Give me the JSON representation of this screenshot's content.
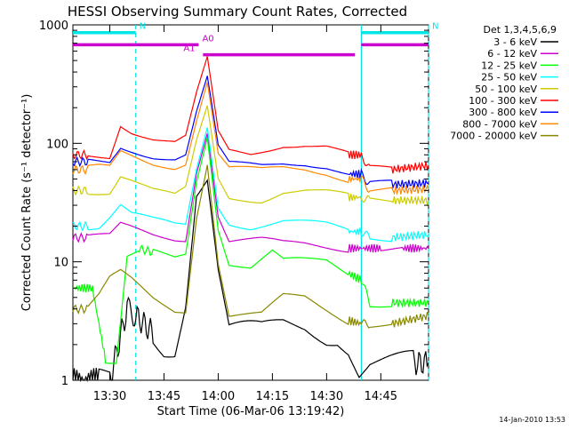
{
  "chart_data": {
    "type": "line",
    "title": "HESSI Observing Summary Count Rates, Corrected",
    "xlabel": "Start Time (06-Mar-06 13:19:42)",
    "ylabel": "Corrected Count Rate (s⁻¹ detector⁻¹)",
    "footer": "14-Jan-2010 13:53",
    "y_scale": "log",
    "ylim": [
      1,
      1000
    ],
    "xlim_minutes": [
      13.33,
      13.97
    ],
    "x_ticks": [
      {
        "label": "13:30",
        "t": 13.5
      },
      {
        "label": "13:45",
        "t": 13.75
      },
      {
        "label": "14:00",
        "t": 14.0
      },
      {
        "label": "14:15",
        "t": 14.25
      },
      {
        "label": "14:30",
        "t": 14.5
      },
      {
        "label": "14:45",
        "t": 14.75
      }
    ],
    "y_ticks": [
      {
        "label": "1",
        "v": 1
      },
      {
        "label": "10",
        "v": 10
      },
      {
        "label": "100",
        "v": 100
      },
      {
        "label": "1000",
        "v": 1000
      }
    ],
    "legend_title": "Det 1,3,4,5,6,9",
    "series": [
      {
        "name": "3 - 6 keV",
        "color": "#000000",
        "t": [
          13.33,
          13.45,
          13.5,
          13.58,
          13.62,
          13.7,
          13.75,
          13.8,
          13.85,
          13.9,
          13.95,
          14.0,
          14.05,
          14.1,
          14.2,
          14.3,
          14.4,
          14.5,
          14.55,
          14.6,
          14.65,
          14.7,
          14.75,
          14.8,
          14.9,
          14.97
        ],
        "v": [
          1,
          1,
          1,
          4,
          3.5,
          2.5,
          2,
          2,
          5,
          40,
          50,
          8,
          2.5,
          2.5,
          2.5,
          3,
          3,
          2.5,
          2.5,
          2,
          1.2,
          1.4,
          1.4,
          1.4,
          1.4,
          1.4
        ]
      },
      {
        "name": "6 - 12 keV",
        "color": "#cc00cc",
        "t": [
          13.33,
          13.4,
          13.5,
          13.55,
          13.6,
          13.7,
          13.8,
          13.85,
          13.9,
          13.95,
          14.0,
          14.05,
          14.1,
          14.2,
          14.3,
          14.4,
          14.5,
          14.6,
          14.63,
          14.66,
          14.75,
          14.85,
          14.97
        ],
        "v": [
          16,
          16,
          16,
          20,
          19,
          17,
          16,
          16,
          60,
          130,
          25,
          15,
          15,
          15,
          14,
          14,
          13.5,
          13,
          13,
          13,
          13,
          13,
          13
        ]
      },
      {
        "name": "12 - 25 keV",
        "color": "#00ff00",
        "t": [
          13.33,
          13.42,
          13.48,
          13.53,
          13.58,
          13.63,
          13.7,
          13.8,
          13.85,
          13.9,
          13.95,
          14.0,
          14.05,
          14.15,
          14.25,
          14.3,
          14.4,
          14.5,
          14.6,
          14.66,
          14.7,
          14.8,
          14.97
        ],
        "v": [
          6,
          6,
          1.5,
          1.5,
          12,
          13,
          12,
          11,
          12,
          50,
          120,
          20,
          10,
          9,
          12,
          10,
          10,
          10,
          8,
          7,
          4.5,
          4.5,
          4.5
        ]
      },
      {
        "name": "25 - 50 keV",
        "color": "#00ffff",
        "t": [
          13.33,
          13.4,
          13.45,
          13.5,
          13.55,
          13.6,
          13.7,
          13.8,
          13.85,
          13.9,
          13.95,
          14.0,
          14.05,
          14.15,
          14.3,
          14.4,
          14.5,
          14.6,
          14.66,
          14.7,
          14.8,
          14.97
        ],
        "v": [
          20,
          20,
          20,
          24,
          30,
          25,
          22,
          20,
          20,
          60,
          140,
          30,
          22,
          20,
          22,
          21,
          20,
          18,
          18,
          16,
          16,
          17
        ]
      },
      {
        "name": "50 - 100 keV",
        "color": "#cccc00",
        "t": [
          13.33,
          13.4,
          13.45,
          13.5,
          13.55,
          13.6,
          13.7,
          13.8,
          13.85,
          13.9,
          13.95,
          14.0,
          14.05,
          14.2,
          14.3,
          14.4,
          14.5,
          14.6,
          14.66,
          14.7,
          14.8,
          14.97
        ],
        "v": [
          40,
          40,
          40,
          40,
          55,
          50,
          40,
          35,
          40,
          100,
          200,
          50,
          35,
          34,
          40,
          40,
          38,
          35,
          35,
          33,
          33,
          33
        ]
      },
      {
        "name": "100 - 300 keV",
        "color": "#ff0000",
        "t": [
          13.33,
          13.4,
          13.45,
          13.5,
          13.55,
          13.6,
          13.7,
          13.8,
          13.85,
          13.9,
          13.95,
          14.0,
          14.05,
          14.15,
          14.3,
          14.4,
          14.5,
          14.6,
          14.66,
          14.7,
          14.8,
          14.97
        ],
        "v": [
          80,
          80,
          80,
          80,
          150,
          130,
          110,
          100,
          110,
          250,
          500,
          120,
          85,
          82,
          100,
          100,
          95,
          80,
          80,
          60,
          60,
          65
        ]
      },
      {
        "name": "300 - 800 keV",
        "color": "#0000ff",
        "t": [
          13.33,
          13.4,
          13.45,
          13.5,
          13.55,
          13.6,
          13.7,
          13.8,
          13.85,
          13.9,
          13.95,
          14.0,
          14.05,
          14.2,
          14.3,
          14.4,
          14.5,
          14.6,
          14.66,
          14.7,
          14.8,
          14.97
        ],
        "v": [
          70,
          70,
          70,
          70,
          95,
          90,
          80,
          75,
          80,
          180,
          350,
          90,
          65,
          65,
          70,
          70,
          65,
          55,
          55,
          45,
          45,
          46
        ]
      },
      {
        "name": "800 - 7000 keV",
        "color": "#ff8800",
        "t": [
          13.33,
          13.4,
          13.45,
          13.5,
          13.55,
          13.6,
          13.7,
          13.8,
          13.85,
          13.9,
          13.95,
          14.0,
          14.05,
          14.2,
          14.3,
          14.4,
          14.5,
          14.6,
          14.66,
          14.7,
          14.8,
          14.97
        ],
        "v": [
          60,
          60,
          62,
          62,
          85,
          80,
          70,
          65,
          70,
          160,
          330,
          80,
          60,
          58,
          62,
          62,
          58,
          50,
          50,
          40,
          40,
          41
        ]
      },
      {
        "name": "7000 - 20000 keV",
        "color": "#888800",
        "t": [
          13.33,
          13.4,
          13.45,
          13.5,
          13.55,
          13.6,
          13.7,
          13.8,
          13.85,
          13.9,
          13.95,
          14.0,
          14.05,
          14.2,
          14.3,
          14.4,
          14.5,
          14.6,
          14.66,
          14.7,
          14.8,
          14.97
        ],
        "v": [
          4,
          4,
          5,
          7,
          8,
          7,
          5,
          4,
          4,
          25,
          70,
          10,
          3.5,
          3.5,
          5,
          5,
          4,
          3.2,
          3,
          3,
          3,
          3.5
        ]
      }
    ],
    "state_bars": [
      {
        "label": "N",
        "color": "#00e5e5",
        "t_start": 13.33,
        "t_end": 13.62,
        "y": 860,
        "vline_t": 13.62
      },
      {
        "label": "N",
        "color": "#00e5e5",
        "t_start": 14.66,
        "t_end": 14.97,
        "y": 860,
        "vline_t": 14.66
      },
      {
        "label": "A0",
        "color": "#cc00cc",
        "t_start": 13.33,
        "t_end": 13.91,
        "y": 680
      },
      {
        "label": "A1",
        "color": "#cc00cc",
        "t_start": 13.93,
        "t_end": 14.63,
        "y": 560
      },
      {
        "label": "",
        "color": "#cc00cc",
        "t_start": 14.66,
        "t_end": 14.97,
        "y": 680
      }
    ],
    "vlines": [
      {
        "t": 13.62,
        "color": "#00e5e5",
        "style": "dashed"
      },
      {
        "t": 14.66,
        "color": "#00e5e5",
        "style": "solid"
      },
      {
        "t": 14.97,
        "color": "#00e5e5",
        "style": "dashed"
      }
    ]
  }
}
